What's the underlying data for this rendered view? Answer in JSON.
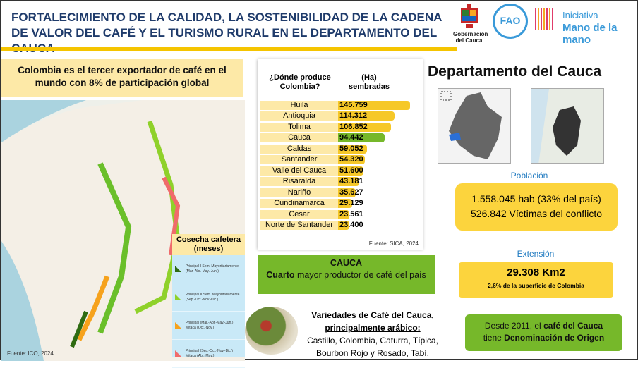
{
  "header": {
    "title": "FORTALECIMIENTO DE LA CALIDAD, LA SOSTENIBILIDAD DE LA CADENA DE VALOR DEL CAFÉ Y EL TURISMO RURAL EN EL DEPARTAMENTO DEL  CAUCA",
    "logos": {
      "gobernacion": "Gobernación del Cauca",
      "fao": "FAO",
      "fao_motto": "FIAT PANIS",
      "iniciativa": "Iniciativa",
      "mano": "Mano de la mano"
    }
  },
  "left": {
    "fact": "Colombia es el tercer exportador de café en el mundo con 8% de participación global",
    "legend_title": "Cosecha cafetera (meses)",
    "legend": [
      {
        "label": "Principal I Sem. Mayoritariamente (Mar.-Abr.-May.-Jun.)",
        "color": "#2e6b12"
      },
      {
        "label": "Principal II Sem. Mayoritariamente (Sep.-Oct.-Nov.-Dic.)",
        "color": "#8fd12a"
      },
      {
        "label": "Principal (Mar.-Abr.-May.-Jun.) Mitaca (Oct.-Nov.)",
        "color": "#f6a21c"
      },
      {
        "label": "Principal (Sep.-Oct.-Nov.-Dic.) Mitaca (Abr.-May.)",
        "color": "#f06b6b"
      }
    ],
    "source": "Fuente: ICO, 2024"
  },
  "production": {
    "col1": "¿Dónde produce Colombia?",
    "col2": "(Ha) sembradas",
    "source": "Fuente: SICA, 2024",
    "rows": [
      {
        "dept": "Huila",
        "value": "145.759",
        "ha": 145759
      },
      {
        "dept": "Antioquia",
        "value": "114.312",
        "ha": 114312
      },
      {
        "dept": "Tolima",
        "value": "106.852",
        "ha": 106852
      },
      {
        "dept": "Cauca",
        "value": "94.442",
        "ha": 94442,
        "highlight": true
      },
      {
        "dept": "Caldas",
        "value": "59.052",
        "ha": 59052
      },
      {
        "dept": "Santander",
        "value": "54.320",
        "ha": 54320
      },
      {
        "dept": "Valle del Cauca",
        "value": "51.600",
        "ha": 51600
      },
      {
        "dept": "Risaralda",
        "value": "43.181",
        "ha": 43181
      },
      {
        "dept": "Nariño",
        "value": "35.627",
        "ha": 35627
      },
      {
        "dept": "Cundinamarca",
        "value": "29.129",
        "ha": 29129
      },
      {
        "dept": "Cesar",
        "value": "23.561",
        "ha": 23561
      },
      {
        "dept": "Norte de Santander",
        "value": "23.400",
        "ha": 23400
      }
    ]
  },
  "cauca": {
    "title": "CAUCA",
    "bold": "Cuarto",
    "text": " mayor productor de café del país"
  },
  "varieties": {
    "title": "Variedades de Café del Cauca,",
    "subtitle": "principalmente arábico:",
    "list": "Castillo, Colombia, Caturra, Típica, Bourbon Rojo y Rosado, Tabí."
  },
  "right": {
    "title": "Departamento del Cauca",
    "pop_label": "Población",
    "pop1": "1.558.045 hab (33% del país)",
    "pop2": "526.842 Víctimas del conflicto",
    "ext_label": "Extensión",
    "ext_value": "29.308 Km2",
    "ext_sub": "2,6% de la superficie de Colombia",
    "den_pre": "Desde 2011, el ",
    "den_b1": "café del Cauca",
    "den_mid": " tiene ",
    "den_b2": "Denominación de Origen"
  },
  "colors": {
    "yellow": "#fcd43d",
    "green": "#76b82a",
    "navy": "#1f3b6b",
    "blue": "#1f7ac0"
  }
}
